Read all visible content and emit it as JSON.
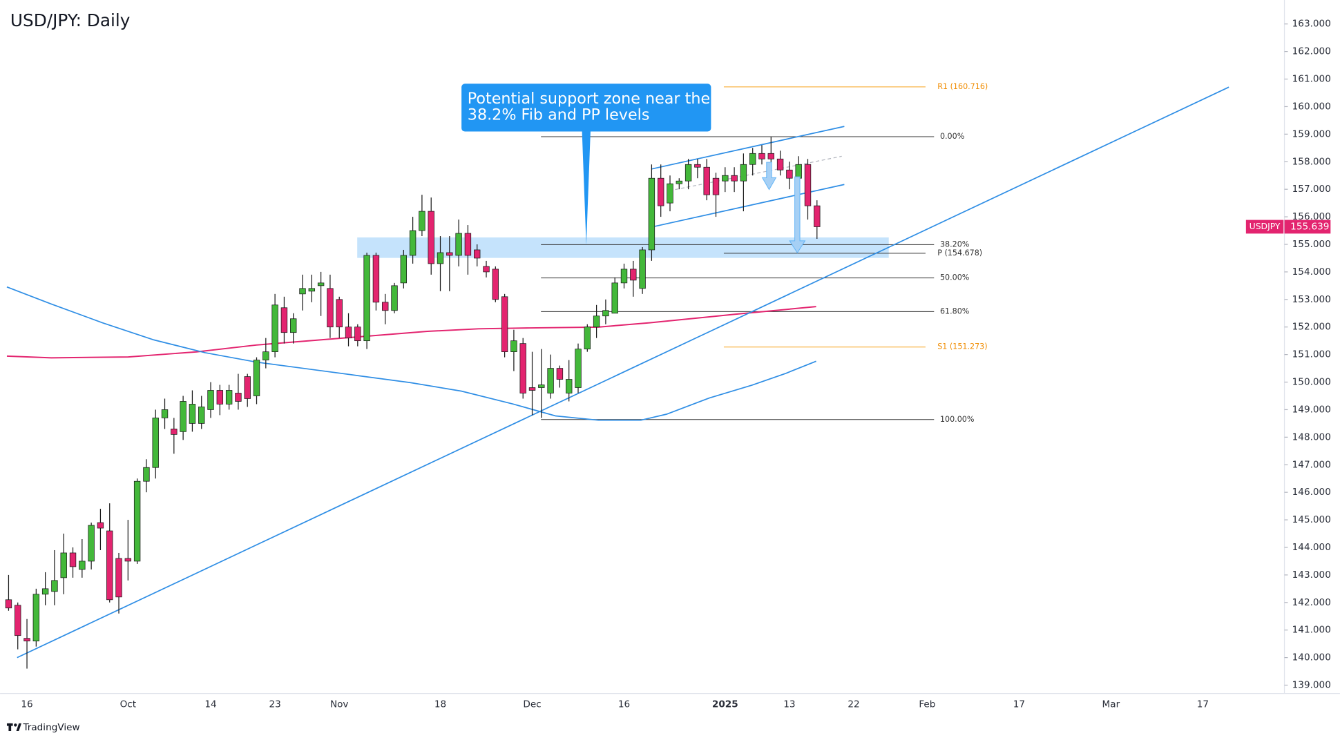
{
  "chart_data": {
    "type": "candlestick",
    "title": "USD/JPY: Daily",
    "symbol": "USDJPY",
    "last_price": 155.639,
    "watermark": "TradingView",
    "categories": [
      null,
      null,
      "16",
      null,
      null,
      null,
      null,
      null,
      null,
      null,
      null,
      null,
      null,
      "Oct",
      null,
      null,
      null,
      null,
      null,
      null,
      null,
      null,
      "14",
      null,
      null,
      null,
      null,
      null,
      null,
      "23",
      null,
      null,
      null,
      null,
      null,
      null,
      "Nov",
      null,
      null,
      null,
      null,
      null,
      null,
      null,
      null,
      null,
      null,
      "18",
      null,
      null,
      null,
      null,
      null,
      null,
      null,
      null,
      null,
      "Dec",
      null,
      null,
      null,
      null,
      null,
      null,
      null,
      null,
      null,
      "16",
      null,
      null,
      null,
      null,
      null,
      null,
      null,
      null,
      null,
      null,
      "2025",
      null,
      null,
      null,
      null,
      null,
      null,
      "13",
      null,
      null,
      null,
      null,
      null,
      null,
      "22",
      null,
      null,
      null,
      null,
      null,
      null,
      null,
      "Feb",
      null,
      null,
      null,
      null,
      null,
      null,
      null,
      null,
      null,
      "17",
      null,
      null,
      null,
      null,
      null,
      null,
      null,
      null,
      null,
      "Mar",
      null,
      null,
      null,
      null,
      null,
      null,
      null,
      null,
      null,
      "17",
      null,
      null,
      null,
      null,
      null,
      null,
      null,
      null
    ],
    "open": [
      142.1,
      141.9,
      140.7,
      140.6,
      142.3,
      142.4,
      142.9,
      143.8,
      143.2,
      143.5,
      144.9,
      144.6,
      143.6,
      143.6,
      143.5,
      146.4,
      146.9,
      148.7,
      148.3,
      148.2,
      148.5,
      148.5,
      149.0,
      149.7,
      149.2,
      149.6,
      150.2,
      149.5,
      150.8,
      151.1,
      152.7,
      151.8,
      153.2,
      153.3,
      153.5,
      153.4,
      153.0,
      152.0,
      152.0,
      151.5,
      154.6,
      152.9,
      152.6,
      153.6,
      154.6,
      155.5,
      156.2,
      154.3,
      154.7,
      154.6,
      155.4,
      154.8,
      154.2,
      154.1,
      153.1,
      151.1,
      151.4,
      149.8,
      149.8,
      149.6,
      150.5,
      149.6,
      149.8,
      151.2,
      152.0,
      152.4,
      152.5,
      153.6,
      154.1,
      153.4,
      154.8,
      157.4,
      156.5,
      157.2,
      157.3,
      157.9,
      157.8,
      157.4,
      157.3,
      157.5,
      157.3,
      157.9,
      158.3,
      158.3,
      158.1,
      157.7,
      157.4,
      157.9,
      156.4,
      null,
      null,
      null,
      null,
      null,
      null,
      null,
      null,
      null,
      null,
      null,
      null,
      null,
      null,
      null,
      null,
      null,
      null,
      null,
      null,
      null,
      null,
      null,
      null,
      null,
      null,
      null,
      null,
      null,
      null,
      null,
      null,
      null,
      null,
      null,
      null,
      null,
      null,
      null,
      null,
      null,
      null,
      null,
      null,
      null,
      null,
      null,
      null,
      null,
      null
    ],
    "high": [
      143.0,
      142.0,
      141.4,
      142.5,
      143.1,
      143.9,
      144.5,
      144.0,
      144.3,
      144.9,
      145.4,
      145.6,
      143.8,
      145.0,
      146.5,
      147.2,
      149.0,
      149.4,
      148.7,
      149.5,
      149.7,
      149.5,
      150.0,
      149.9,
      149.9,
      150.3,
      150.3,
      150.9,
      151.6,
      153.2,
      153.1,
      152.5,
      153.9,
      153.9,
      154.0,
      153.9,
      153.1,
      152.5,
      152.1,
      154.7,
      154.7,
      153.2,
      153.6,
      154.8,
      156.0,
      156.8,
      156.7,
      155.3,
      155.3,
      155.9,
      155.7,
      155.0,
      154.4,
      154.2,
      153.2,
      151.9,
      151.6,
      151.1,
      151.2,
      151.0,
      150.6,
      150.8,
      151.4,
      152.1,
      152.8,
      153.0,
      153.8,
      154.3,
      154.4,
      154.9,
      157.9,
      157.9,
      157.5,
      157.4,
      158.1,
      158.1,
      158.1,
      157.6,
      157.8,
      157.8,
      158.3,
      158.5,
      158.6,
      158.9,
      158.4,
      158.0,
      158.2,
      158.1,
      156.6,
      null,
      null,
      null,
      null,
      null,
      null,
      null,
      null,
      null,
      null,
      null,
      null,
      null,
      null,
      null,
      null,
      null,
      null,
      null,
      null,
      null,
      null,
      null,
      null,
      null,
      null,
      null,
      null,
      null,
      null,
      null,
      null,
      null,
      null,
      null,
      null,
      null,
      null,
      null,
      null,
      null,
      null,
      null,
      null,
      null,
      null,
      null,
      null,
      null,
      null
    ],
    "low": [
      141.7,
      140.3,
      139.6,
      140.4,
      141.9,
      141.9,
      142.3,
      142.9,
      142.9,
      143.2,
      143.9,
      142.0,
      141.6,
      142.8,
      143.4,
      146.0,
      146.5,
      148.3,
      147.4,
      147.9,
      148.2,
      148.3,
      148.7,
      148.8,
      149.0,
      149.0,
      149.1,
      149.2,
      150.5,
      150.9,
      151.4,
      151.4,
      152.6,
      152.9,
      152.4,
      151.6,
      151.6,
      151.3,
      151.3,
      151.2,
      152.6,
      152.1,
      152.5,
      153.4,
      154.3,
      155.3,
      153.9,
      153.3,
      153.3,
      154.2,
      153.9,
      154.2,
      153.8,
      152.9,
      150.9,
      150.4,
      149.4,
      148.8,
      148.7,
      149.4,
      149.8,
      149.3,
      149.6,
      151.1,
      151.6,
      152.1,
      152.5,
      153.4,
      153.1,
      153.2,
      154.4,
      156.0,
      156.2,
      157.0,
      157.0,
      157.4,
      156.6,
      156.0,
      156.9,
      156.9,
      156.2,
      157.5,
      157.9,
      157.6,
      157.5,
      157.0,
      156.9,
      155.9,
      155.2,
      null,
      null,
      null,
      null,
      null,
      null,
      null,
      null,
      null,
      null,
      null,
      null,
      null,
      null,
      null,
      null,
      null,
      null,
      null,
      null,
      null,
      null,
      null,
      null,
      null,
      null,
      null,
      null,
      null,
      null,
      null,
      null,
      null,
      null,
      null,
      null,
      null,
      null,
      null,
      null,
      null,
      null,
      null,
      null,
      null,
      null,
      null,
      null,
      null,
      null
    ],
    "close": [
      141.8,
      140.8,
      140.6,
      142.3,
      142.5,
      142.8,
      143.8,
      143.3,
      143.5,
      144.8,
      144.7,
      142.1,
      142.2,
      143.5,
      146.4,
      146.9,
      148.7,
      149.0,
      148.1,
      149.3,
      149.2,
      149.1,
      149.7,
      149.2,
      149.7,
      149.3,
      149.4,
      150.8,
      151.1,
      152.8,
      151.8,
      152.3,
      153.4,
      153.4,
      153.6,
      152.0,
      152.0,
      151.6,
      151.5,
      154.6,
      152.9,
      152.6,
      153.5,
      154.6,
      155.5,
      156.2,
      154.3,
      154.7,
      154.6,
      155.4,
      154.6,
      154.5,
      154.0,
      153.0,
      151.1,
      151.5,
      149.6,
      149.7,
      149.9,
      150.5,
      150.1,
      150.1,
      151.2,
      152.0,
      152.4,
      152.6,
      153.6,
      154.1,
      153.7,
      154.8,
      157.4,
      156.4,
      157.2,
      157.3,
      157.9,
      157.8,
      156.8,
      156.8,
      157.5,
      157.3,
      157.9,
      158.3,
      158.1,
      158.1,
      157.7,
      157.4,
      157.9,
      156.4,
      155.639,
      null,
      null,
      null,
      null,
      null,
      null,
      null,
      null,
      null,
      null,
      null,
      null,
      null,
      null,
      null,
      null,
      null,
      null,
      null,
      null,
      null,
      null,
      null,
      null,
      null,
      null,
      null,
      null,
      null,
      null,
      null,
      null,
      null,
      null,
      null,
      null,
      null,
      null,
      null,
      null,
      null,
      null,
      null,
      null,
      null,
      null,
      null,
      null,
      null,
      null
    ],
    "up_color": "#43b83a",
    "down_color": "#e3246f",
    "ylim": [
      138.76,
      163.87
    ],
    "yticks": [
      {
        "value": 139,
        "label": "139.000"
      },
      {
        "value": 140,
        "label": "140.000"
      },
      {
        "value": 141,
        "label": "141.000"
      },
      {
        "value": 142,
        "label": "142.000"
      },
      {
        "value": 143,
        "label": "143.000"
      },
      {
        "value": 144,
        "label": "144.000"
      },
      {
        "value": 145,
        "label": "145.000"
      },
      {
        "value": 146,
        "label": "146.000"
      },
      {
        "value": 147,
        "label": "147.000"
      },
      {
        "value": 148,
        "label": "148.000"
      },
      {
        "value": 149,
        "label": "149.000"
      },
      {
        "value": 150,
        "label": "150.000"
      },
      {
        "value": 151,
        "label": "151.000"
      },
      {
        "value": 152,
        "label": "152.000"
      },
      {
        "value": 153,
        "label": "153.000"
      },
      {
        "value": 154,
        "label": "154.000"
      },
      {
        "value": 155,
        "label": "155.000"
      },
      {
        "value": 156,
        "label": "156.000"
      },
      {
        "value": 157,
        "label": "157.000"
      },
      {
        "value": 158,
        "label": "158.000"
      },
      {
        "value": 159,
        "label": "159.000"
      },
      {
        "value": 160,
        "label": "160.000"
      },
      {
        "value": 161,
        "label": "161.000"
      },
      {
        "value": 162,
        "label": "162.000"
      },
      {
        "value": 163,
        "label": "163.000"
      }
    ],
    "grid": false,
    "fib_levels": [
      {
        "label": "0.00%",
        "price": 158.91
      },
      {
        "label": "38.20%",
        "price": 154.99
      },
      {
        "label": "50.00%",
        "price": 153.78
      },
      {
        "label": "61.80%",
        "price": 152.56
      },
      {
        "label": "100.00%",
        "price": 148.64
      }
    ],
    "pivot_levels": [
      {
        "label": "R1 (160.716)",
        "price": 160.716
      },
      {
        "label": "P (154.678)",
        "price": 154.678
      },
      {
        "label": "S1 (151.273)",
        "price": 151.273
      }
    ],
    "callout": [
      "Potential support zone near the",
      "38.2% Fib and PP levels"
    ]
  }
}
